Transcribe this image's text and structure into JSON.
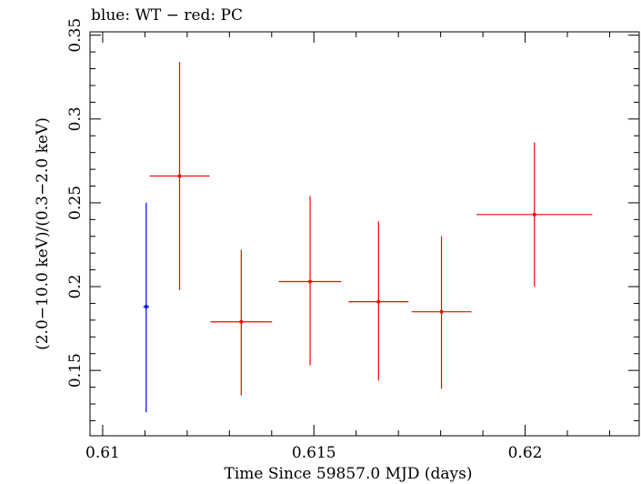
{
  "chart_data": {
    "type": "scatter",
    "title": "blue: WT − red: PC",
    "xlabel": "Time Since 59857.0 MJD (days)",
    "ylabel": "(2.0−10.0 keV)/(0.3−2.0 keV)",
    "xlim": [
      0.6097,
      0.6227
    ],
    "ylim": [
      0.111,
      0.352
    ],
    "x_ticks": [
      {
        "value": 0.61,
        "label": "0.61"
      },
      {
        "value": 0.615,
        "label": "0.615"
      },
      {
        "value": 0.62,
        "label": "0.62"
      }
    ],
    "y_ticks": [
      {
        "value": 0.15,
        "label": "0.15"
      },
      {
        "value": 0.2,
        "label": "0.2"
      },
      {
        "value": 0.25,
        "label": "0.25"
      },
      {
        "value": 0.3,
        "label": "0.3"
      },
      {
        "value": 0.35,
        "label": "0.35"
      }
    ],
    "series": [
      {
        "color": "#0000ff",
        "points": [
          {
            "x": 0.61103,
            "xerr": 7e-05,
            "y": 0.188,
            "ylo": 0.125,
            "yhi": 0.25
          }
        ]
      },
      {
        "color": "#ff0000",
        "points": [
          {
            "x": 0.61182,
            "xerr": 0.00071,
            "y": 0.266,
            "ylo": 0.198,
            "yhi": 0.334
          },
          {
            "x": 0.61328,
            "xerr": 0.00073,
            "y": 0.179,
            "ylo": 0.135,
            "yhi": 0.222
          },
          {
            "x": 0.61491,
            "xerr": 0.00074,
            "y": 0.203,
            "ylo": 0.153,
            "yhi": 0.254
          },
          {
            "x": 0.61653,
            "xerr": 0.00071,
            "y": 0.191,
            "ylo": 0.144,
            "yhi": 0.239
          },
          {
            "x": 0.61802,
            "xerr": 0.00071,
            "y": 0.185,
            "ylo": 0.139,
            "yhi": 0.23
          },
          {
            "x": 0.62022,
            "xerr": 0.00137,
            "y": 0.243,
            "ylo": 0.2,
            "yhi": 0.286
          }
        ]
      }
    ]
  }
}
